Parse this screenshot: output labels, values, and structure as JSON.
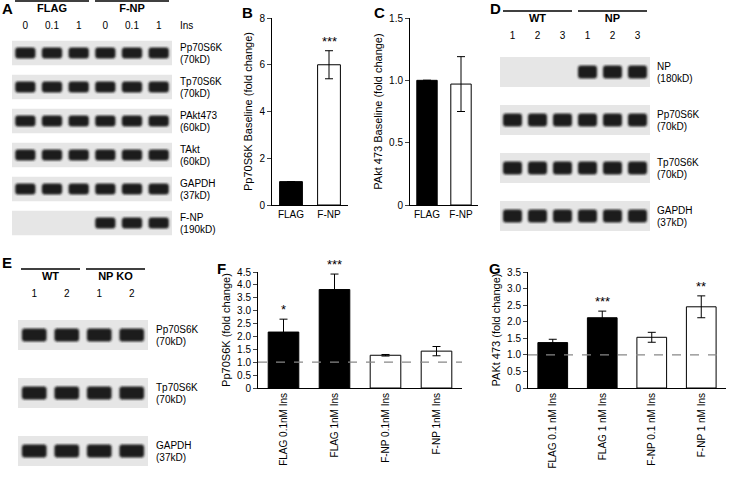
{
  "chart_data": [
    {
      "panel": "B",
      "type": "bar",
      "categories": [
        "FLAG",
        "F-NP"
      ],
      "values": [
        1,
        6.0
      ],
      "errors": [
        null,
        0.6
      ],
      "significance": [
        null,
        "***"
      ],
      "colors": [
        "#000000",
        "#ffffff"
      ],
      "ylabel": "Pp70S6K Baseline (fold change)",
      "ylim": [
        0,
        8
      ],
      "yticks": [
        0,
        2,
        4,
        6,
        8
      ]
    },
    {
      "panel": "C",
      "type": "bar",
      "categories": [
        "FLAG",
        "F-NP"
      ],
      "values": [
        1,
        0.97
      ],
      "errors": [
        null,
        0.22
      ],
      "colors": [
        "#000000",
        "#ffffff"
      ],
      "ylabel": "PAkt 473 Baseline (fold change)",
      "ylim": [
        0,
        1.5
      ],
      "yticks": [
        0,
        0.5,
        {
          "value": 1,
          "label": "1.0"
        },
        1.5
      ]
    },
    {
      "panel": "F",
      "type": "bar",
      "categories": [
        "FLAG 0.1nM Ins",
        "FLAG 1nM Ins",
        "F-NP 0.1nM Ins",
        "F-NP 1nM Ins"
      ],
      "values": [
        2.17,
        3.82,
        1.27,
        1.43
      ],
      "errors": [
        0.5,
        0.6,
        0.03,
        0.18
      ],
      "significance": [
        "*",
        "***",
        null,
        null
      ],
      "colors": [
        "#000000",
        "#000000",
        "#ffffff",
        "#ffffff"
      ],
      "reference_line": 1,
      "ylabel": "Pp70S6K (fold change)",
      "ylim": [
        0,
        4.5
      ],
      "yticks": [
        0,
        0.5,
        {
          "value": 1,
          "label": "1.0"
        },
        1.5,
        {
          "value": 2,
          "label": "2.0"
        },
        2.5,
        {
          "value": 3,
          "label": "3.0"
        },
        3.5,
        {
          "value": 4,
          "label": "4.0"
        },
        4.5
      ]
    },
    {
      "panel": "G",
      "type": "bar",
      "categories": [
        "FLAG 0.1 nM Ins",
        "FLAG 1 nM Ins",
        "F-NP 0.1 nM Ins",
        "F-NP 1 nM Ins"
      ],
      "values": [
        1.37,
        2.12,
        1.53,
        2.45
      ],
      "errors": [
        0.1,
        0.2,
        0.15,
        0.33
      ],
      "significance": [
        null,
        "***",
        null,
        "**"
      ],
      "colors": [
        "#000000",
        "#000000",
        "#ffffff",
        "#ffffff"
      ],
      "reference_line": 1,
      "ylabel": "PAKt 473 (fold change)",
      "ylim": [
        0,
        3.5
      ],
      "yticks": [
        0,
        0.5,
        {
          "value": 1,
          "label": "1.0"
        },
        1.5,
        {
          "value": 2,
          "label": "2.0"
        },
        2.5,
        {
          "value": 3,
          "label": "3.0"
        },
        3.5
      ]
    }
  ],
  "blots": [
    {
      "panel": "A",
      "lane_title": "Ins",
      "groups": [
        {
          "label": "FLAG",
          "lanes": [
            "0",
            "0.1",
            "1"
          ]
        },
        {
          "label": "F-NP",
          "lanes": [
            "0",
            "0.1",
            "1"
          ]
        }
      ],
      "rows": [
        {
          "label": "Pp70S6K",
          "size": "(70kD)"
        },
        {
          "label": "Tp70S6K",
          "size": "(70kD)"
        },
        {
          "label": "PAkt473",
          "size": "(60kD)"
        },
        {
          "label": "TAkt",
          "size": "(60kD)"
        },
        {
          "label": "GAPDH",
          "size": "(37kD)"
        },
        {
          "label": "F-NP",
          "size": "(190kD)",
          "present": [
            false,
            false,
            false,
            true,
            true,
            true
          ]
        }
      ]
    },
    {
      "panel": "D",
      "groups": [
        {
          "label": "WT",
          "lanes": [
            "1",
            "2",
            "3"
          ]
        },
        {
          "label": "NP",
          "lanes": [
            "1",
            "2",
            "3"
          ]
        }
      ],
      "rows": [
        {
          "label": "NP",
          "size": "(180kD)",
          "present": [
            false,
            false,
            false,
            true,
            true,
            true
          ]
        },
        {
          "label": "Pp70S6K",
          "size": "(70kD)"
        },
        {
          "label": "Tp70S6K",
          "size": "(70kD)"
        },
        {
          "label": "GAPDH",
          "size": "(37kD)"
        }
      ]
    },
    {
      "panel": "E",
      "groups": [
        {
          "label": "WT",
          "lanes": [
            "1",
            "2"
          ]
        },
        {
          "label": "NP KO",
          "lanes": [
            "1",
            "2"
          ]
        }
      ],
      "rows": [
        {
          "label": "Pp70S6K",
          "size": "(70kD)"
        },
        {
          "label": "Tp70S6K",
          "size": "(70kD)"
        },
        {
          "label": "GAPDH",
          "size": "(37kD)"
        }
      ]
    }
  ]
}
